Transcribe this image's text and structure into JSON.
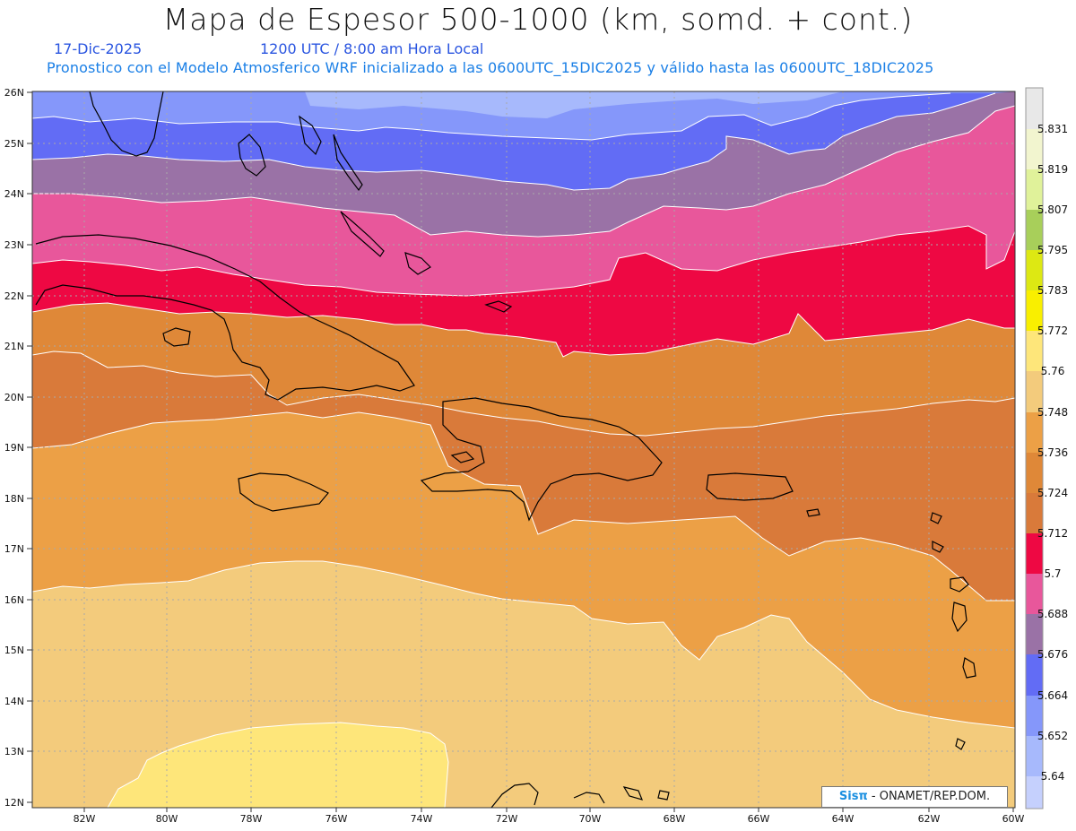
{
  "title": "Mapa de Espesor 500-1000 (km, somd. + cont.)",
  "date": "17-Dic-2025",
  "time": "1200 UTC / 8:00 am Hora Local",
  "forecast_line": "Pronostico con el Modelo Atmosferico WRF inicializado a las 0600UTC_15DIC2025 y válido hasta las  0600UTC_18DIC2025",
  "credit": {
    "brand": "Sisπ",
    "text": " - ONAMET/REP.DOM."
  },
  "map": {
    "lat_labels": [
      "26N",
      "25N",
      "24N",
      "23N",
      "22N",
      "21N",
      "20N",
      "19N",
      "18N",
      "17N",
      "16N",
      "15N",
      "14N",
      "13N",
      "12N"
    ],
    "lon_labels": [
      "82W",
      "80W",
      "78W",
      "76W",
      "74W",
      "72W",
      "70W",
      "68W",
      "66W",
      "64W",
      "62W",
      "60W"
    ],
    "colors": {
      "coastline": "#000000",
      "contour": "#ffffff",
      "grid": "#a9a9a9"
    }
  },
  "colorbar": {
    "labels": [
      "5.831",
      "5.819",
      "5.807",
      "5.795",
      "5.783",
      "5.772",
      "5.76",
      "5.748",
      "5.736",
      "5.724",
      "5.712",
      "5.7",
      "5.688",
      "5.676",
      "5.664",
      "5.652",
      "5.64"
    ],
    "colors": [
      "#e8e8e8",
      "#f2f5cf",
      "#e0f29a",
      "#a8cf5a",
      "#dde813",
      "#f9ef00",
      "#fee67a",
      "#f3cb7c",
      "#eca046",
      "#df8838",
      "#d97a3a",
      "#ee0843",
      "#e8579b",
      "#9a72a6",
      "#626cf5",
      "#8597fa",
      "#a7b9fc",
      "#c5d0fd"
    ]
  }
}
